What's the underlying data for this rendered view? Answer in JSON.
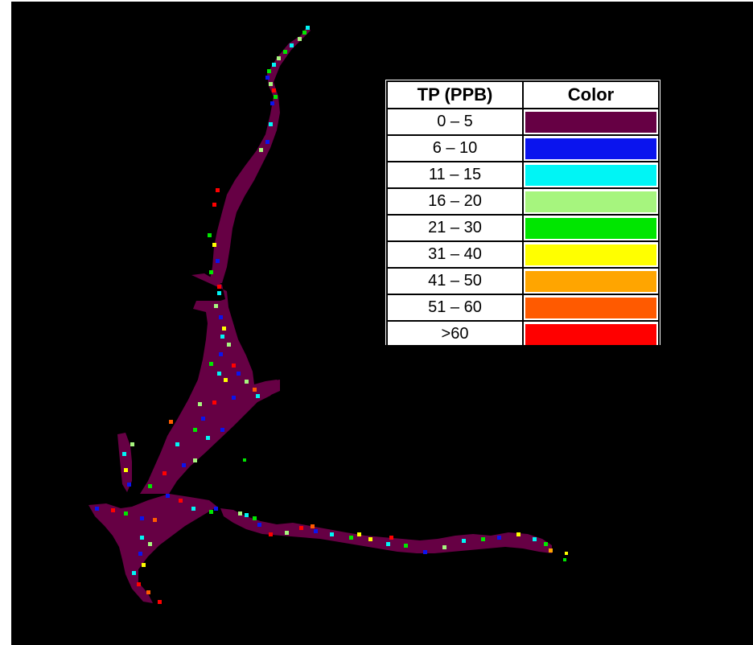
{
  "legend": {
    "header_range": "TP (PPB)",
    "header_color": "Color",
    "rows": [
      {
        "range": "0 – 5",
        "color": "#660044"
      },
      {
        "range": "6 – 10",
        "color": "#0a14ee"
      },
      {
        "range": "11 – 15",
        "color": "#00f5f5"
      },
      {
        "range": "16 – 20",
        "color": "#a6f57e"
      },
      {
        "range": "21 – 30",
        "color": "#00e600"
      },
      {
        "range": "31 – 40",
        "color": "#ffff00"
      },
      {
        "range": "41 – 50",
        "color": "#ffa500"
      },
      {
        "range": "51 – 60",
        "color": "#ff5a00"
      },
      {
        "range": ">60",
        "color": "#ff0000"
      }
    ]
  },
  "map": {
    "background_color": "#000000",
    "base_class_color": "#660044"
  }
}
